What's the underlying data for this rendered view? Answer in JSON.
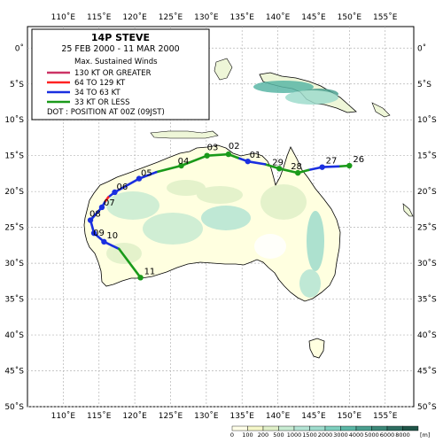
{
  "storm": {
    "title": "14P STEVE",
    "dates": "25 FEB 2000 - 11 MAR 2000"
  },
  "legend": {
    "heading": "Max. Sustained Winds",
    "items": [
      {
        "label": "130 KT OR GREATER",
        "color": "#cc3366"
      },
      {
        "label": "64 TO 129 KT",
        "color": "#ff2222"
      },
      {
        "label": "34 TO 63 KT",
        "color": "#1a2fe0"
      },
      {
        "label": "33 KT OR LESS",
        "color": "#1a9a1a"
      }
    ],
    "dot_note": "DOT : POSITION AT 00Z (09JST)"
  },
  "axes": {
    "lon_ticks": [
      "110˚E",
      "115˚E",
      "120˚E",
      "125˚E",
      "130˚E",
      "135˚E",
      "140˚E",
      "145˚E",
      "150˚E",
      "155˚E"
    ],
    "lat_ticks": [
      "0˚",
      "5˚S",
      "10˚S",
      "15˚S",
      "20˚S",
      "25˚S",
      "30˚S",
      "35˚S",
      "40˚S",
      "45˚S",
      "50˚S"
    ]
  },
  "track_days": [
    {
      "label": "26",
      "lon": 150.0,
      "lat": -16.4
    },
    {
      "label": "27",
      "lon": 146.2,
      "lat": -16.6
    },
    {
      "label": "28",
      "lon": 142.8,
      "lat": -17.4
    },
    {
      "label": "29",
      "lon": 140.2,
      "lat": -16.8
    },
    {
      "label": "01",
      "lon": 135.8,
      "lat": -15.8
    },
    {
      "label": "02",
      "lon": 133.1,
      "lat": -14.8
    },
    {
      "label": "03",
      "lon": 130.1,
      "lat": -15.0
    },
    {
      "label": "04",
      "lon": 126.5,
      "lat": -16.4
    },
    {
      "label": "05",
      "lon": 120.6,
      "lat": -18.2
    },
    {
      "label": "06",
      "lon": 117.2,
      "lat": -20.1
    },
    {
      "label": "07",
      "lon": 115.4,
      "lat": -22.2
    },
    {
      "label": "08",
      "lon": 113.8,
      "lat": -24.0
    },
    {
      "label": "09",
      "lon": 114.3,
      "lat": -25.8
    },
    {
      "label": "10",
      "lon": 115.7,
      "lat": -27.0
    },
    {
      "label": "11",
      "lon": 120.8,
      "lat": -32.0
    }
  ],
  "track_segments": [
    {
      "category": "33 KT OR LESS",
      "points": [
        [
          150.0,
          -16.4
        ],
        [
          148.5,
          -16.5
        ]
      ]
    },
    {
      "category": "34 TO 63 KT",
      "points": [
        [
          148.5,
          -16.5
        ],
        [
          146.2,
          -16.6
        ],
        [
          144.3,
          -17.0
        ]
      ]
    },
    {
      "category": "33 KT OR LESS",
      "points": [
        [
          144.3,
          -17.0
        ],
        [
          142.8,
          -17.4
        ],
        [
          140.2,
          -16.8
        ],
        [
          138.2,
          -16.2
        ]
      ]
    },
    {
      "category": "34 TO 63 KT",
      "points": [
        [
          138.2,
          -16.2
        ],
        [
          135.8,
          -15.8
        ],
        [
          134.4,
          -15.3
        ]
      ]
    },
    {
      "category": "33 KT OR LESS",
      "points": [
        [
          134.4,
          -15.3
        ],
        [
          133.1,
          -14.8
        ],
        [
          130.1,
          -15.0
        ],
        [
          126.5,
          -16.4
        ],
        [
          123.0,
          -17.3
        ]
      ]
    },
    {
      "category": "34 TO 63 KT",
      "points": [
        [
          123.0,
          -17.3
        ],
        [
          120.6,
          -18.2
        ],
        [
          117.2,
          -20.1
        ],
        [
          116.3,
          -20.8
        ]
      ]
    },
    {
      "category": "64 TO 129 KT",
      "points": [
        [
          116.3,
          -20.8
        ],
        [
          115.8,
          -21.5
        ]
      ]
    },
    {
      "category": "34 TO 63 KT",
      "points": [
        [
          115.8,
          -21.5
        ],
        [
          115.4,
          -22.2
        ],
        [
          113.8,
          -24.0
        ],
        [
          114.3,
          -25.8
        ],
        [
          115.7,
          -27.0
        ],
        [
          117.8,
          -28.0
        ]
      ]
    },
    {
      "category": "33 KT OR LESS",
      "points": [
        [
          117.8,
          -28.0
        ],
        [
          120.8,
          -32.0
        ]
      ]
    }
  ],
  "colorbar": {
    "ticks": [
      "0",
      "100",
      "200",
      "500",
      "1000",
      "1500",
      "2000",
      "3000",
      "4000",
      "5000",
      "6000",
      "8000"
    ],
    "unit": "[m]",
    "colors": [
      "#ffffe8",
      "#f5f7c8",
      "#e0f0c8",
      "#c8ecd2",
      "#b4e4d4",
      "#9fdccd",
      "#7ecfbe",
      "#5bb7a6",
      "#4a9f8f",
      "#3c8878",
      "#2e6e61",
      "#1f5548"
    ]
  }
}
